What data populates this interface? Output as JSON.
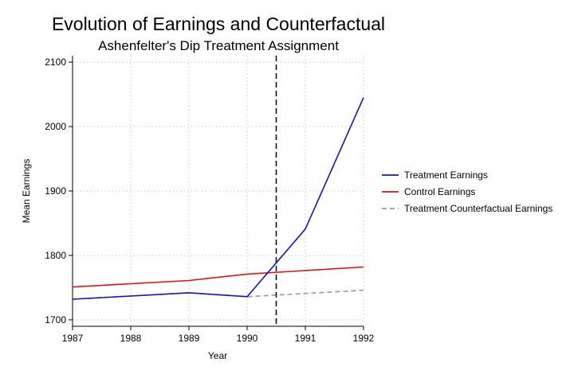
{
  "chart_data": {
    "type": "line",
    "title": "Evolution of Earnings and Counterfactual",
    "subtitle": "Ashenfelter's Dip Treatment Assignment",
    "xlabel": "Year",
    "ylabel": "Mean Earnings",
    "x": [
      1987,
      1988,
      1989,
      1990,
      1991,
      1992
    ],
    "xlim": [
      1987,
      1992
    ],
    "ylim": [
      1690,
      2110
    ],
    "yticks": [
      1700,
      1800,
      1900,
      2000,
      2100
    ],
    "grid": true,
    "legend_position": "right",
    "series": [
      {
        "name": "Treatment Earnings",
        "color": "#1515c0",
        "style": "solid",
        "x": [
          1987,
          1989,
          1990,
          1991,
          1992
        ],
        "values": [
          1732,
          1742,
          1736,
          1841,
          2045
        ]
      },
      {
        "name": "Control Earnings",
        "color": "#e01010",
        "style": "solid",
        "x": [
          1987,
          1989,
          1990,
          1992
        ],
        "values": [
          1751,
          1761,
          1771,
          1782
        ]
      },
      {
        "name": "Treatment Counterfactual Earnings",
        "color": "#999999",
        "style": "dashed",
        "x": [
          1987,
          1989,
          1990,
          1992
        ],
        "values": [
          1732,
          1742,
          1736,
          1746
        ]
      }
    ],
    "vline": {
      "x": 1990.5,
      "style": "dashed",
      "color": "#000000"
    }
  }
}
